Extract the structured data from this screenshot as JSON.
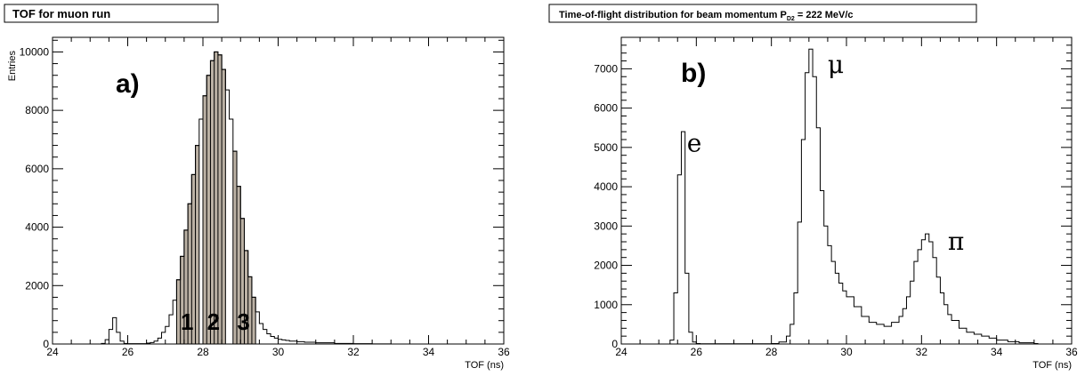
{
  "chart_data": [
    {
      "type": "step",
      "panel": "a)",
      "title": "TOF for muon run",
      "xlabel": "TOF (ns)",
      "ylabel": "Entries",
      "xlim": [
        24,
        36
      ],
      "ylim": [
        0,
        10500
      ],
      "xticks": [
        24,
        26,
        28,
        30,
        32,
        34,
        36
      ],
      "yticks": [
        0,
        2000,
        4000,
        6000,
        8000,
        10000
      ],
      "bin_width": 0.1,
      "series": [
        {
          "x": [
            25.3,
            25.4,
            25.5,
            25.6,
            25.7,
            25.8,
            25.9,
            26.0,
            26.1,
            26.2,
            26.3,
            26.4,
            26.5,
            26.6,
            26.7,
            26.8,
            26.9,
            27.0,
            27.1,
            27.2,
            27.3,
            27.4,
            27.5,
            27.6,
            27.7,
            27.8,
            27.9,
            28.0,
            28.1,
            28.2,
            28.3,
            28.4,
            28.5,
            28.6,
            28.7,
            28.8,
            28.9,
            29.0,
            29.1,
            29.2,
            29.3,
            29.4,
            29.5,
            29.6,
            29.7,
            29.8,
            29.9,
            30.0,
            30.1,
            30.2,
            30.3,
            30.5,
            30.7,
            31.0,
            31.5,
            32.0,
            32.5,
            33.0
          ],
          "values": [
            20,
            150,
            500,
            900,
            400,
            100,
            20,
            10,
            10,
            10,
            10,
            10,
            30,
            50,
            100,
            200,
            400,
            600,
            1000,
            1500,
            2200,
            3000,
            3900,
            4800,
            5800,
            6800,
            7700,
            8500,
            9200,
            9700,
            10000,
            9900,
            9400,
            8700,
            7700,
            6600,
            5400,
            4300,
            3200,
            2300,
            1600,
            1100,
            700,
            500,
            350,
            260,
            200,
            160,
            140,
            120,
            100,
            80,
            60,
            40,
            20,
            10,
            5,
            0
          ]
        }
      ],
      "regions": [
        {
          "label": "1",
          "xmin": 27.3,
          "xmax": 27.9
        },
        {
          "label": "2",
          "xmin": 28.0,
          "xmax": 28.6
        },
        {
          "label": "3",
          "xmin": 28.8,
          "xmax": 29.4
        }
      ]
    },
    {
      "type": "step",
      "panel": "b)",
      "title": "Time-of-flight distribution for beam momentum  P",
      "title_subscript": "D2",
      "title_suffix": " = 222 MeV/c",
      "xlabel": "TOF (ns)",
      "xlim": [
        24,
        36
      ],
      "ylim": [
        0,
        7800
      ],
      "xticks": [
        24,
        26,
        28,
        30,
        32,
        34,
        36
      ],
      "yticks": [
        0,
        1000,
        2000,
        3000,
        4000,
        5000,
        6000,
        7000
      ],
      "bin_width": 0.1,
      "series": [
        {
          "x": [
            25.3,
            25.4,
            25.5,
            25.6,
            25.7,
            25.8,
            25.9,
            26.0,
            26.1,
            28.0,
            28.2,
            28.4,
            28.5,
            28.6,
            28.7,
            28.8,
            28.9,
            29.0,
            29.1,
            29.2,
            29.3,
            29.4,
            29.5,
            29.6,
            29.7,
            29.8,
            29.9,
            30.0,
            30.2,
            30.4,
            30.6,
            30.8,
            31.0,
            31.2,
            31.4,
            31.5,
            31.6,
            31.7,
            31.8,
            31.9,
            32.0,
            32.1,
            32.2,
            32.3,
            32.4,
            32.5,
            32.6,
            32.7,
            32.8,
            33.0,
            33.2,
            33.4,
            33.6,
            33.8,
            34.0,
            34.3,
            34.6,
            35.0
          ],
          "values": [
            100,
            1300,
            4300,
            5400,
            1800,
            300,
            50,
            10,
            5,
            10,
            50,
            200,
            500,
            1300,
            3100,
            5200,
            6900,
            7500,
            6800,
            5500,
            3900,
            3000,
            2500,
            2100,
            1800,
            1550,
            1350,
            1200,
            950,
            700,
            550,
            500,
            450,
            550,
            700,
            900,
            1200,
            1600,
            2100,
            2400,
            2650,
            2800,
            2600,
            2200,
            1700,
            1300,
            1000,
            750,
            600,
            400,
            300,
            250,
            200,
            150,
            100,
            60,
            30,
            10
          ]
        }
      ],
      "annotations": [
        {
          "text": "e",
          "x": 25.75,
          "y": 4900
        },
        {
          "text": "μ",
          "x": 29.5,
          "y": 6900
        },
        {
          "text": "π",
          "x": 32.7,
          "y": 2400
        }
      ]
    }
  ]
}
